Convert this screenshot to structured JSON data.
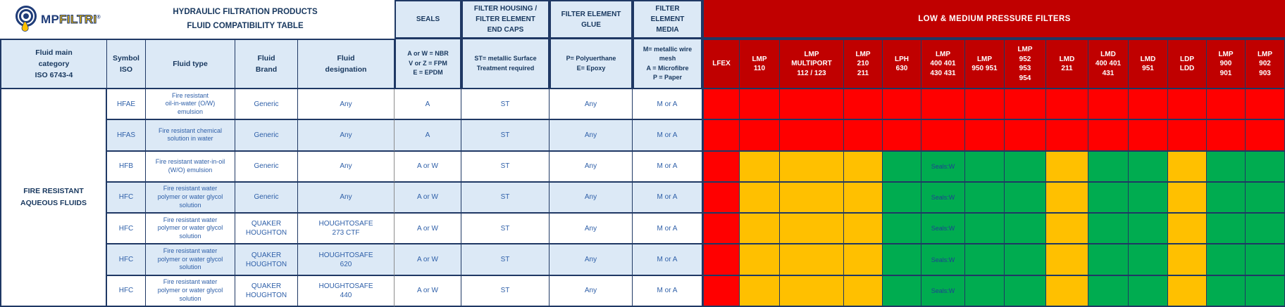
{
  "logo": {
    "mp": "MP",
    "filtri": "FILTRI",
    "reg": "®"
  },
  "title": "HYDRAULIC FILTRATION PRODUCTS\nFLUID COMPATIBILITY TABLE",
  "columns": {
    "category": "Fluid main\ncategory\nISO 6743-4",
    "symbol": "Symbol\nISO",
    "fluid_type": "Fluid type",
    "brand": "Fluid\nBrand",
    "designation": "Fluid\ndesignation"
  },
  "spec_headers": [
    {
      "title": "SEALS",
      "legend": "A or W = NBR\nV or Z = FPM\nE = EPDM"
    },
    {
      "title": "FILTER HOUSING /\nFILTER ELEMENT\nEND CAPS",
      "legend": "ST= metallic Surface\nTreatment required"
    },
    {
      "title": "FILTER ELEMENT\nGLUE",
      "legend": "P= Polyuerthane\nE= Epoxy"
    },
    {
      "title": "FILTER\nELEMENT\nMEDIA",
      "legend": "M= metallic wire\nmesh\nA = Microfibre\nP = Paper"
    }
  ],
  "banner": "LOW & MEDIUM PRESSURE FILTERS",
  "filters": [
    "LFEX",
    "LMP\n110",
    "LMP\nMULTIPORT\n112 / 123",
    "LMP\n210\n211",
    "LPH\n630",
    "LMP\n400 401\n430 431",
    "LMP\n950 951",
    "LMP\n952\n953\n954",
    "LMD\n211",
    "LMD\n400 401\n431",
    "LMD\n951",
    "LDP\nLDD",
    "LMP\n900\n901",
    "LMP\n902\n903"
  ],
  "category_label": "FIRE RESISTANT\nAQUEOUS FLUIDS",
  "colors": {
    "compatible_green": "#00AC50",
    "conditional_yellow": "#FFC000",
    "incompatible_red": "#FF0000",
    "banner_red": "#C00000",
    "border_navy": "#1F3864",
    "header_blue": "#DCE9F6",
    "row_alt_blue": "#DCE9F6",
    "text_navy": "#17375E",
    "text_blue": "#2E5FA8"
  },
  "rows": [
    {
      "symbol": "HFAE",
      "fluid_type": "Fire resistant\noil-in-water (O/W)\nemulsion",
      "brand": "Generic",
      "designation": "Any",
      "seals": "A",
      "housing": "ST",
      "glue": "Any",
      "media": "M or A",
      "compat": [
        "red",
        "red",
        "red",
        "red",
        "red",
        "red",
        "red",
        "red",
        "red",
        "red",
        "red",
        "red",
        "red",
        "red"
      ],
      "notes": {}
    },
    {
      "symbol": "HFAS",
      "fluid_type": "Fire resistant chemical\nsolution in water",
      "brand": "Generic",
      "designation": "Any",
      "seals": "A",
      "housing": "ST",
      "glue": "Any",
      "media": "M or A",
      "compat": [
        "red",
        "red",
        "red",
        "red",
        "red",
        "red",
        "red",
        "red",
        "red",
        "red",
        "red",
        "red",
        "red",
        "red"
      ],
      "notes": {}
    },
    {
      "symbol": "HFB",
      "fluid_type": "Fire resistant water-in-oil\n(W/O) emulsion",
      "brand": "Generic",
      "designation": "Any",
      "seals": "A or W",
      "housing": "ST",
      "glue": "Any",
      "media": "M or A",
      "compat": [
        "red",
        "yellow",
        "yellow",
        "yellow",
        "green",
        "green",
        "green",
        "green",
        "yellow",
        "green",
        "green",
        "yellow",
        "green",
        "green"
      ],
      "notes": {
        "5": "Seals:W"
      }
    },
    {
      "symbol": "HFC",
      "fluid_type": "Fire resistant water\npolymer or water glycol\nsolution",
      "brand": "Generic",
      "designation": "Any",
      "seals": "A or W",
      "housing": "ST",
      "glue": "Any",
      "media": "M or A",
      "compat": [
        "red",
        "yellow",
        "yellow",
        "yellow",
        "green",
        "green",
        "green",
        "green",
        "yellow",
        "green",
        "green",
        "yellow",
        "green",
        "green"
      ],
      "notes": {
        "5": "Seals:W"
      }
    },
    {
      "symbol": "HFC",
      "fluid_type": "Fire resistant water\npolymer or water glycol\nsolution",
      "brand": "QUAKER\nHOUGHTON",
      "designation": "HOUGHTOSAFE\n273 CTF",
      "seals": "A or W",
      "housing": "ST",
      "glue": "Any",
      "media": "M or A",
      "compat": [
        "red",
        "yellow",
        "yellow",
        "yellow",
        "green",
        "green",
        "green",
        "green",
        "yellow",
        "green",
        "green",
        "yellow",
        "green",
        "green"
      ],
      "notes": {
        "5": "Seals:W"
      }
    },
    {
      "symbol": "HFC",
      "fluid_type": "Fire resistant water\npolymer or water glycol\nsolution",
      "brand": "QUAKER\nHOUGHTON",
      "designation": "HOUGHTOSAFE\n620",
      "seals": "A or W",
      "housing": "ST",
      "glue": "Any",
      "media": "M or A",
      "compat": [
        "red",
        "yellow",
        "yellow",
        "yellow",
        "green",
        "green",
        "green",
        "green",
        "yellow",
        "green",
        "green",
        "yellow",
        "green",
        "green"
      ],
      "notes": {
        "5": "Seals:W"
      }
    },
    {
      "symbol": "HFC",
      "fluid_type": "Fire resistant water\npolymer or water glycol\nsolution",
      "brand": "QUAKER\nHOUGHTON",
      "designation": "HOUGHTOSAFE\n440",
      "seals": "A or W",
      "housing": "ST",
      "glue": "Any",
      "media": "M or A",
      "compat": [
        "red",
        "yellow",
        "yellow",
        "yellow",
        "green",
        "green",
        "green",
        "green",
        "yellow",
        "green",
        "green",
        "yellow",
        "green",
        "green"
      ],
      "notes": {
        "5": "Seals:W"
      }
    }
  ]
}
